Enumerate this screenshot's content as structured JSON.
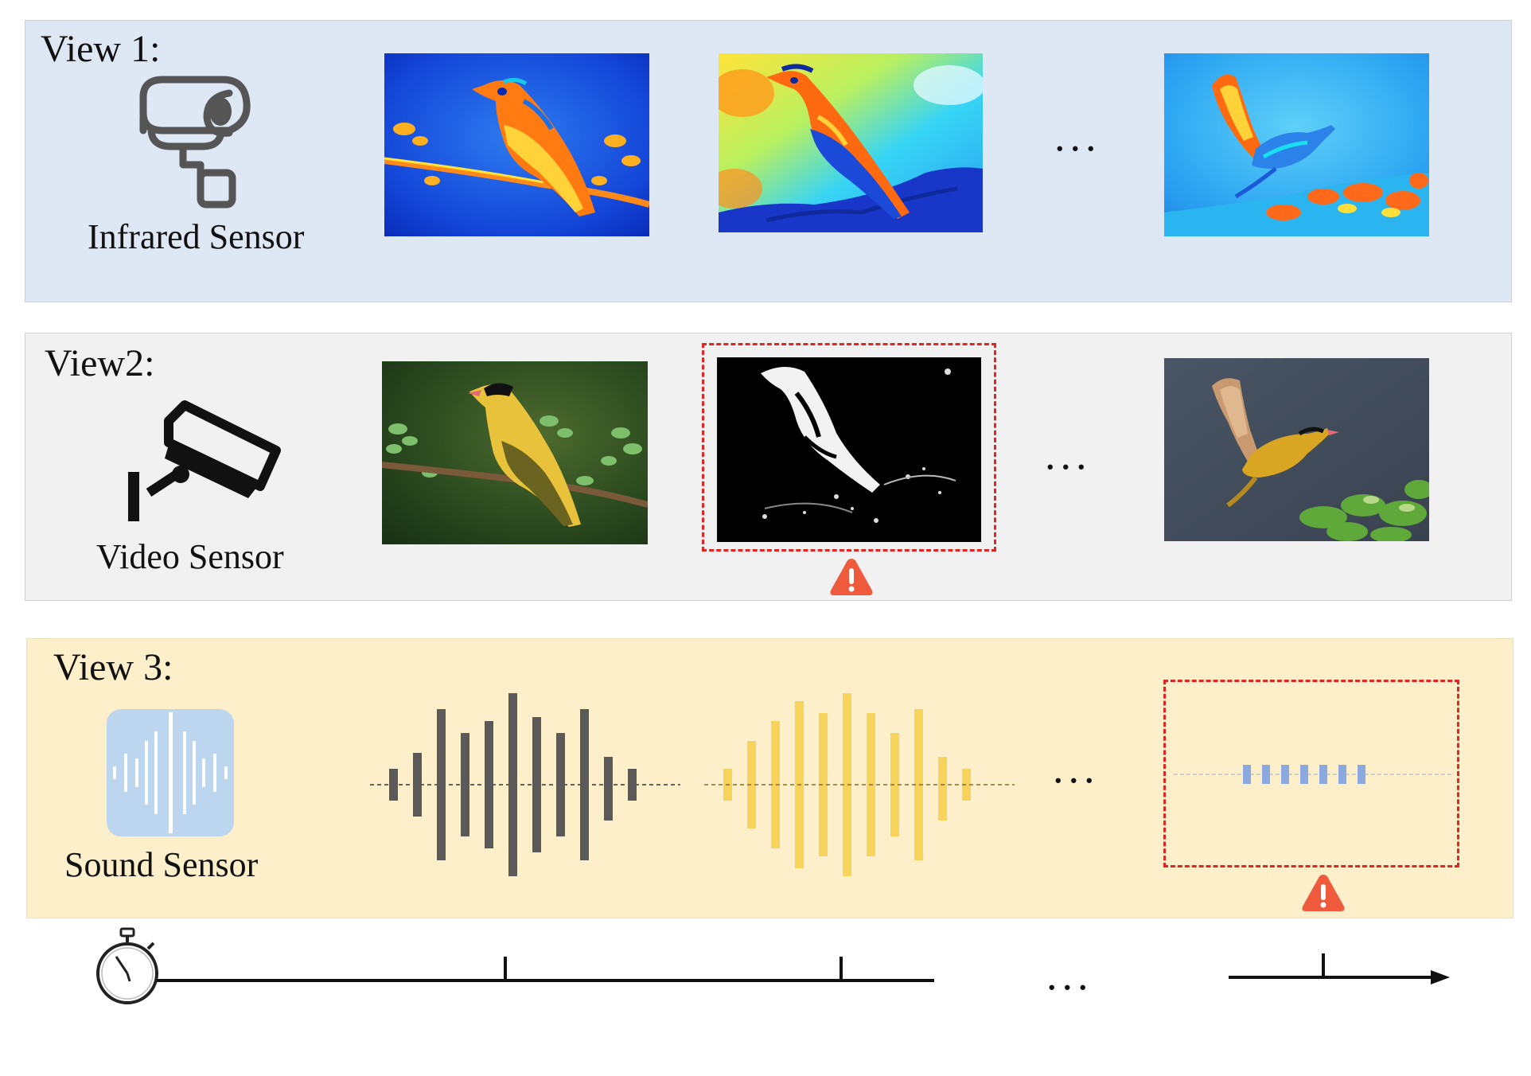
{
  "views": [
    {
      "title": "View 1:",
      "sensor": "Infrared Sensor",
      "icon": "infrared-camera-icon"
    },
    {
      "title": "View2:",
      "sensor": "Video Sensor",
      "icon": "cctv-camera-icon"
    },
    {
      "title": "View 3:",
      "sensor": "Sound Sensor",
      "icon": "sound-wave-icon"
    }
  ],
  "ellipsis": "...",
  "colors": {
    "view1_bg": "#dee8f4",
    "view2_bg": "#f1f1f1",
    "view3_bg": "#fdefc9",
    "alert_red": "#e02525",
    "warning_orange": "#f05a3c",
    "wave_gray": "#5a5a5a",
    "wave_yellow": "#f7d35c",
    "wave_blue": "#8aaadf"
  }
}
